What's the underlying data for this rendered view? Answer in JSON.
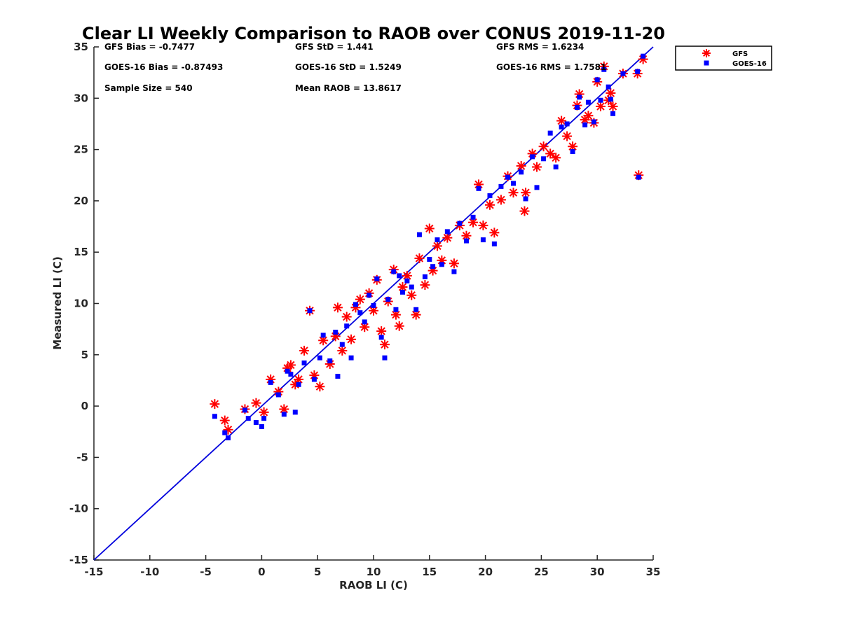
{
  "chart_data": {
    "type": "scatter",
    "title": "Clear LI Weekly Comparison to RAOB over CONUS 2019-11-20",
    "xlabel": "RAOB LI (C)",
    "ylabel": "Measured LI (C)",
    "xlim": [
      -15,
      35
    ],
    "ylim": [
      -15,
      35
    ],
    "xticks": [
      -15,
      -10,
      -5,
      0,
      5,
      10,
      15,
      20,
      25,
      30,
      35
    ],
    "yticks": [
      -15,
      -10,
      -5,
      0,
      5,
      10,
      15,
      20,
      25,
      30,
      35
    ],
    "grid": false,
    "legend_position": "outside-top-right",
    "reference_line": {
      "name": "1:1 line",
      "from": [
        -15,
        -15
      ],
      "to": [
        35,
        35
      ],
      "color": "#0000dd"
    },
    "stats": [
      "GFS Bias = -0.7477",
      "GFS StD = 1.441",
      "GFS RMS = 1.6234",
      "GOES-16 Bias = -0.87493",
      "GOES-16 StD = 1.5249",
      "GOES-16 RMS = 1.7581",
      "Sample Size = 540",
      "Mean RAOB = 13.8617"
    ],
    "sample_size": 540,
    "series": [
      {
        "name": "GFS",
        "marker": "asterisk",
        "color": "#ff0000",
        "points": [
          [
            -4.2,
            0.2
          ],
          [
            -3.3,
            -1.4
          ],
          [
            -3,
            -2.3
          ],
          [
            -1.5,
            -0.3
          ],
          [
            -0.5,
            0.3
          ],
          [
            0.2,
            -0.6
          ],
          [
            0.8,
            2.6
          ],
          [
            1.5,
            1.4
          ],
          [
            2,
            -0.3
          ],
          [
            2.3,
            3.7
          ],
          [
            2.6,
            4
          ],
          [
            3,
            2.1
          ],
          [
            3.3,
            2.6
          ],
          [
            3.8,
            5.4
          ],
          [
            4.3,
            9.3
          ],
          [
            4.7,
            3
          ],
          [
            5.2,
            1.9
          ],
          [
            5.5,
            6.4
          ],
          [
            6.1,
            4.1
          ],
          [
            6.6,
            6.8
          ],
          [
            6.8,
            9.6
          ],
          [
            7.2,
            5.4
          ],
          [
            7.6,
            8.7
          ],
          [
            8,
            6.5
          ],
          [
            8.4,
            9.6
          ],
          [
            8.8,
            10.4
          ],
          [
            9.2,
            7.7
          ],
          [
            9.6,
            11
          ],
          [
            10,
            9.3
          ],
          [
            10.3,
            12.3
          ],
          [
            10.7,
            7.3
          ],
          [
            11,
            6
          ],
          [
            11.3,
            10.2
          ],
          [
            11.8,
            13.3
          ],
          [
            12,
            8.9
          ],
          [
            12.3,
            7.8
          ],
          [
            12.6,
            11.6
          ],
          [
            13,
            12.7
          ],
          [
            13.4,
            10.8
          ],
          [
            13.8,
            8.9
          ],
          [
            14.1,
            14.4
          ],
          [
            14.6,
            11.8
          ],
          [
            15,
            17.3
          ],
          [
            15.3,
            13.2
          ],
          [
            15.7,
            15.6
          ],
          [
            16.1,
            14.2
          ],
          [
            16.6,
            16.4
          ],
          [
            17.2,
            13.9
          ],
          [
            17.7,
            17.6
          ],
          [
            18.3,
            16.6
          ],
          [
            18.9,
            17.9
          ],
          [
            19.4,
            21.6
          ],
          [
            19.8,
            17.6
          ],
          [
            20.4,
            19.6
          ],
          [
            20.8,
            16.9
          ],
          [
            21.4,
            20.1
          ],
          [
            22,
            22.4
          ],
          [
            22.5,
            20.8
          ],
          [
            23.2,
            23.4
          ],
          [
            23.5,
            19
          ],
          [
            23.6,
            20.8
          ],
          [
            24.2,
            24.6
          ],
          [
            24.6,
            23.3
          ],
          [
            25.2,
            25.3
          ],
          [
            25.8,
            24.6
          ],
          [
            26.3,
            24.2
          ],
          [
            26.8,
            27.8
          ],
          [
            27.3,
            26.3
          ],
          [
            27.8,
            25.3
          ],
          [
            28.2,
            29.3
          ],
          [
            28.4,
            30.4
          ],
          [
            28.9,
            27.9
          ],
          [
            29.2,
            28.3
          ],
          [
            29.7,
            27.6
          ],
          [
            30,
            31.6
          ],
          [
            30.3,
            29.2
          ],
          [
            30.6,
            33.1
          ],
          [
            31,
            29.8
          ],
          [
            31.2,
            30.5
          ],
          [
            31.4,
            29.2
          ],
          [
            32.3,
            32.4
          ],
          [
            33.6,
            32.4
          ],
          [
            33.7,
            22.5
          ],
          [
            34.1,
            33.8
          ]
        ]
      },
      {
        "name": "GOES-16",
        "marker": "square",
        "color": "#0000ff",
        "points": [
          [
            -4.2,
            -1
          ],
          [
            -3.3,
            -2.6
          ],
          [
            -3,
            -3.1
          ],
          [
            -1.5,
            -0.4
          ],
          [
            -1.2,
            -1.2
          ],
          [
            -0.5,
            -1.6
          ],
          [
            0,
            -2
          ],
          [
            0.2,
            -1.2
          ],
          [
            0.8,
            2.3
          ],
          [
            1.5,
            1.1
          ],
          [
            2,
            -0.8
          ],
          [
            2.3,
            3.4
          ],
          [
            2.6,
            3.1
          ],
          [
            3,
            -0.6
          ],
          [
            3.3,
            2.1
          ],
          [
            3.8,
            4.2
          ],
          [
            4.3,
            9.3
          ],
          [
            4.7,
            2.6
          ],
          [
            5.2,
            4.7
          ],
          [
            5.5,
            6.9
          ],
          [
            6.1,
            4.4
          ],
          [
            6.6,
            7.2
          ],
          [
            6.8,
            2.9
          ],
          [
            7.2,
            6
          ],
          [
            7.6,
            7.8
          ],
          [
            8,
            4.7
          ],
          [
            8.4,
            9.9
          ],
          [
            8.8,
            9.1
          ],
          [
            9.2,
            8.2
          ],
          [
            9.6,
            10.8
          ],
          [
            10,
            9.8
          ],
          [
            10.3,
            12.4
          ],
          [
            10.7,
            6.7
          ],
          [
            11,
            4.7
          ],
          [
            11.3,
            10.4
          ],
          [
            11.8,
            13.1
          ],
          [
            12,
            9.4
          ],
          [
            12.3,
            12.7
          ],
          [
            12.6,
            11.1
          ],
          [
            13,
            12.2
          ],
          [
            13.4,
            11.6
          ],
          [
            13.8,
            9.4
          ],
          [
            14.1,
            16.7
          ],
          [
            14.6,
            12.6
          ],
          [
            15,
            14.3
          ],
          [
            15.3,
            13.6
          ],
          [
            15.7,
            16.2
          ],
          [
            16.1,
            13.8
          ],
          [
            16.6,
            17
          ],
          [
            17.2,
            13.1
          ],
          [
            17.7,
            17.8
          ],
          [
            18.3,
            16.1
          ],
          [
            18.9,
            18.4
          ],
          [
            19.4,
            21.2
          ],
          [
            19.8,
            16.2
          ],
          [
            20.4,
            20.5
          ],
          [
            20.8,
            15.8
          ],
          [
            21.4,
            21.4
          ],
          [
            22,
            22.3
          ],
          [
            22.5,
            21.7
          ],
          [
            23.2,
            22.8
          ],
          [
            23.6,
            20.2
          ],
          [
            24.2,
            24.3
          ],
          [
            24.6,
            21.3
          ],
          [
            25.2,
            24.1
          ],
          [
            25.8,
            26.6
          ],
          [
            26.3,
            23.3
          ],
          [
            26.8,
            27.2
          ],
          [
            27.3,
            27.5
          ],
          [
            27.8,
            24.8
          ],
          [
            28.2,
            29.1
          ],
          [
            28.4,
            30.1
          ],
          [
            28.9,
            27.4
          ],
          [
            29.2,
            29.6
          ],
          [
            29.7,
            27.7
          ],
          [
            30,
            31.8
          ],
          [
            30.3,
            29.8
          ],
          [
            30.6,
            32.8
          ],
          [
            31,
            31.1
          ],
          [
            31.2,
            29.9
          ],
          [
            31.4,
            28.5
          ],
          [
            32.3,
            32.4
          ],
          [
            33.6,
            32.6
          ],
          [
            33.7,
            22.3
          ],
          [
            34.1,
            34.1
          ]
        ]
      }
    ]
  }
}
